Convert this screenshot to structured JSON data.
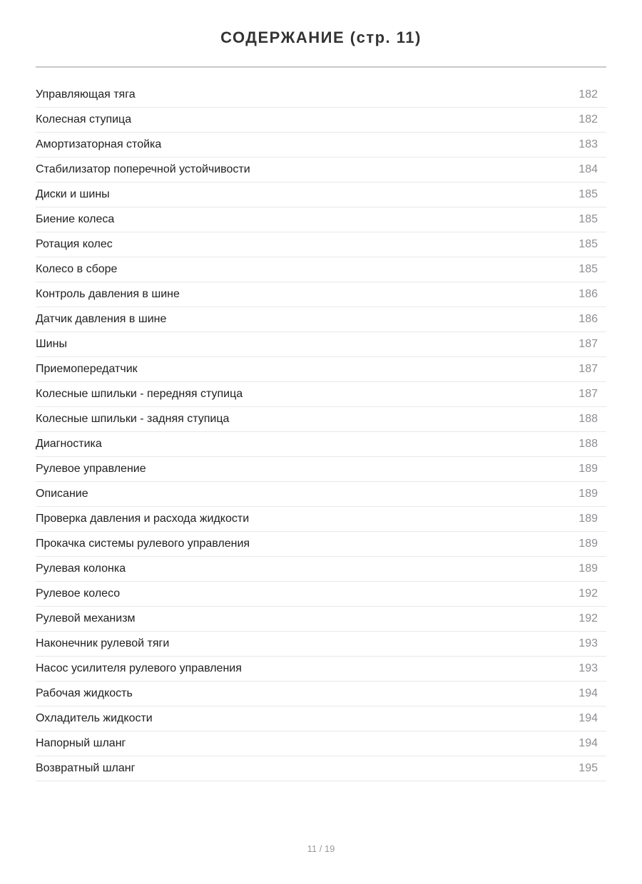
{
  "header": {
    "title": "СОДЕРЖАНИЕ (стр. 11)"
  },
  "entries": [
    {
      "title": "Управляющая тяга",
      "page": "182"
    },
    {
      "title": "Колесная ступица",
      "page": "182"
    },
    {
      "title": "Амортизаторная стойка",
      "page": "183"
    },
    {
      "title": "Стабилизатор поперечной устойчивости",
      "page": "184"
    },
    {
      "title": "Диски и шины",
      "page": "185"
    },
    {
      "title": "Биение колеса",
      "page": "185"
    },
    {
      "title": "Ротация колес",
      "page": "185"
    },
    {
      "title": "Колесо в сборе",
      "page": "185"
    },
    {
      "title": "Контроль давления в шине",
      "page": "186"
    },
    {
      "title": "Датчик давления в шине",
      "page": "186"
    },
    {
      "title": "Шины",
      "page": "187"
    },
    {
      "title": "Приемопередатчик",
      "page": "187"
    },
    {
      "title": "Колесные шпильки - передняя ступица",
      "page": "187"
    },
    {
      "title": "Колесные шпильки - задняя ступица",
      "page": "188"
    },
    {
      "title": "Диагностика",
      "page": "188"
    },
    {
      "title": "Рулевое управление",
      "page": "189"
    },
    {
      "title": "Описание",
      "page": "189"
    },
    {
      "title": "Проверка давления и расхода жидкости",
      "page": "189"
    },
    {
      "title": "Прокачка системы рулевого управления",
      "page": "189"
    },
    {
      "title": "Рулевая колонка",
      "page": "189"
    },
    {
      "title": "Рулевое колесо",
      "page": "192"
    },
    {
      "title": "Рулевой механизм",
      "page": "192"
    },
    {
      "title": "Наконечник рулевой тяги",
      "page": "193"
    },
    {
      "title": "Насос усилителя рулевого управления",
      "page": "193"
    },
    {
      "title": "Рабочая жидкость",
      "page": "194"
    },
    {
      "title": "Охладитель жидкости",
      "page": "194"
    },
    {
      "title": "Напорный шланг",
      "page": "194"
    },
    {
      "title": "Возвратный шланг",
      "page": "195"
    }
  ],
  "footer": {
    "page_indicator": "11 / 19"
  },
  "colors": {
    "title_text": "#333333",
    "entry_text": "#212121",
    "page_number_text": "#8e8e93",
    "row_divider": "#e8e8e8",
    "title_divider": "#c9c9c9",
    "footer_text": "#9a9a9a",
    "background": "#ffffff"
  }
}
